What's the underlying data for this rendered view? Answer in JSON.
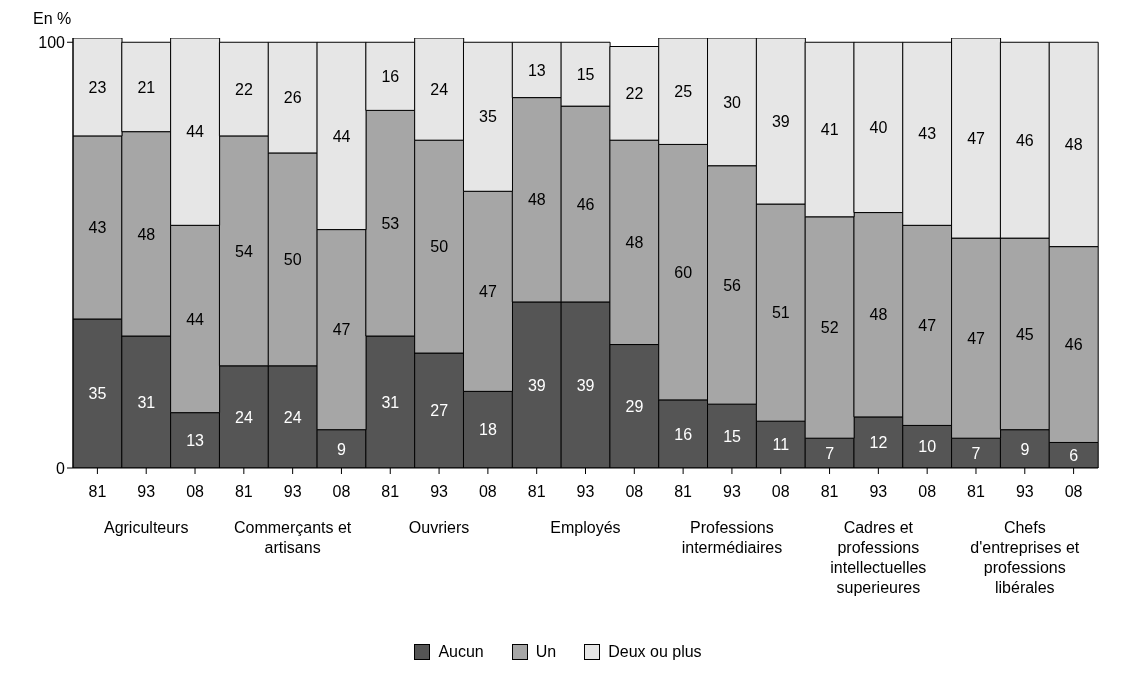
{
  "chart_data": {
    "type": "bar",
    "ylabel": "En %",
    "stacked": true,
    "data_labels": true,
    "grid": false,
    "legend": "bottom",
    "categories": [
      "81",
      "93",
      "08",
      "81",
      "93",
      "08",
      "81",
      "93",
      "08",
      "81",
      "93",
      "08",
      "81",
      "93",
      "08",
      "81",
      "93",
      "08",
      "81",
      "93",
      "08"
    ],
    "annotations": [
      "Agriculteurs",
      "Commerçants et artisans",
      "Ouvriers",
      "Employés",
      "Professions intermédiaires",
      "Cadres et professions intellectuelles superieures",
      "Chefs d'entreprises et professions libérales"
    ],
    "ylim": [
      0,
      101
    ],
    "yticks": [
      0,
      100
    ],
    "series": [
      {
        "name": "Aucun",
        "color": "#555555",
        "values": [
          35,
          31,
          13,
          24,
          24,
          9,
          31,
          27,
          18,
          39,
          39,
          29,
          16,
          15,
          11,
          7,
          12,
          10,
          7,
          9,
          6
        ]
      },
      {
        "name": "Un",
        "color": "#a6a6a6",
        "values": [
          43,
          48,
          44,
          54,
          50,
          47,
          53,
          50,
          47,
          48,
          46,
          48,
          60,
          56,
          51,
          52,
          48,
          47,
          47,
          45,
          46
        ]
      },
      {
        "name": "Deux ou plus",
        "color": "#e6e6e6",
        "values": [
          23,
          21,
          44,
          22,
          26,
          44,
          16,
          24,
          35,
          13,
          15,
          22,
          25,
          30,
          39,
          41,
          40,
          43,
          47,
          46,
          48
        ]
      }
    ]
  }
}
